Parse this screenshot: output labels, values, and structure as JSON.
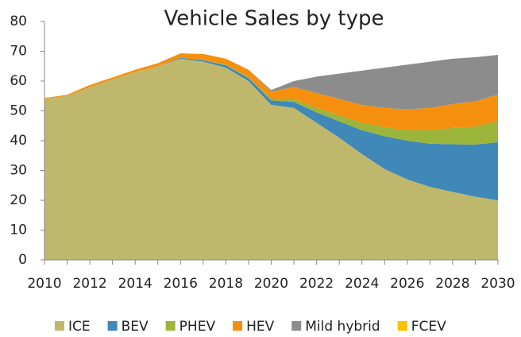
{
  "chart_data": {
    "type": "stacked_area",
    "title": "Vehicle Sales by type",
    "x": [
      2010,
      2011,
      2012,
      2013,
      2014,
      2015,
      2016,
      2017,
      2018,
      2019,
      2020,
      2021,
      2022,
      2023,
      2024,
      2025,
      2026,
      2027,
      2028,
      2029,
      2030
    ],
    "series": [
      {
        "name": "ICE",
        "color": "#bfb86c",
        "values": [
          54,
          55,
          58,
          60.5,
          63,
          65,
          67.5,
          66.5,
          64.5,
          60,
          52,
          51,
          46,
          41,
          35.5,
          30.5,
          27,
          24.5,
          22.8,
          21.2,
          20
        ]
      },
      {
        "name": "BEV",
        "color": "#3f88b8",
        "values": [
          0,
          0,
          0,
          0,
          0,
          0,
          0.3,
          0.5,
          0.8,
          1,
          1.5,
          2,
          3.5,
          5.5,
          8,
          11,
          13,
          14.5,
          16,
          17.5,
          19.5
        ]
      },
      {
        "name": "PHEV",
        "color": "#9bb53a",
        "values": [
          0,
          0,
          0,
          0,
          0,
          0,
          0,
          0.1,
          0.2,
          0.3,
          0.5,
          1,
          1.5,
          2,
          2.5,
          3,
          3.5,
          4.5,
          5.5,
          6,
          7
        ]
      },
      {
        "name": "HEV",
        "color": "#f5900f",
        "values": [
          0.3,
          0.4,
          0.7,
          0.7,
          0.8,
          1,
          1.5,
          2,
          2,
          2.5,
          2.5,
          4,
          5,
          5.5,
          6,
          6.5,
          7,
          7.5,
          8,
          8.5,
          9
        ]
      },
      {
        "name": "Mild hybrid",
        "color": "#8c8c8c",
        "values": [
          0,
          0,
          0,
          0,
          0,
          0,
          0,
          0,
          0,
          0,
          0.5,
          2,
          5.5,
          8.5,
          11.5,
          13.5,
          15,
          15.5,
          15.2,
          14.8,
          13.3
        ]
      },
      {
        "name": "FCEV",
        "color": "#ffc000",
        "values": [
          0,
          0,
          0,
          0,
          0,
          0,
          0,
          0,
          0,
          0,
          0,
          0,
          0,
          0,
          0,
          0,
          0,
          0,
          0,
          0,
          0
        ]
      }
    ],
    "xlim": [
      2010,
      2030
    ],
    "xticks": [
      2010,
      2012,
      2014,
      2016,
      2018,
      2020,
      2022,
      2024,
      2026,
      2028,
      2030
    ],
    "ylim": [
      0,
      80
    ],
    "yticks": [
      0,
      10,
      20,
      30,
      40,
      50,
      60,
      70,
      80
    ],
    "legend": "bottom"
  }
}
